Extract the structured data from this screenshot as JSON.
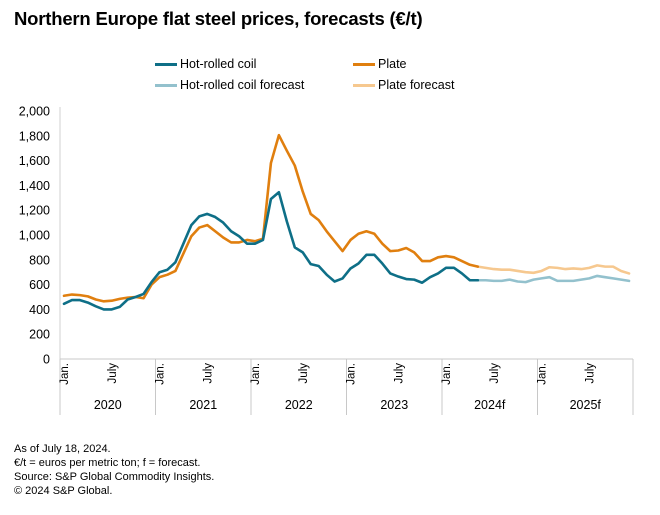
{
  "title": "Northern Europe flat steel prices, forecasts (€/t)",
  "legend": [
    {
      "label": "Hot-rolled coil",
      "color": "#0e6f87"
    },
    {
      "label": "Plate",
      "color": "#e07f0f"
    },
    {
      "label": "Hot-rolled coil forecast",
      "color": "#93c1cd"
    },
    {
      "label": "Plate forecast",
      "color": "#f6c88f"
    }
  ],
  "footnotes": [
    "As of July 18, 2024.",
    "€/t = euros per metric ton; f = forecast.",
    "Source: S&P Global Commodity Insights.",
    "© 2024 S&P Global."
  ],
  "chart_data": {
    "type": "line",
    "title": "Northern Europe flat steel prices, forecasts (€/t)",
    "xlabel": "",
    "ylabel": "",
    "ylim": [
      0,
      2000
    ],
    "yticks": [
      0,
      200,
      400,
      600,
      800,
      1000,
      1200,
      1400,
      1600,
      1800,
      2000
    ],
    "ytick_labels": [
      "0",
      "200",
      "400",
      "600",
      "800",
      "1,000",
      "1,200",
      "1,400",
      "1,600",
      "1,800",
      "2,000"
    ],
    "grid": false,
    "legend_position": "top",
    "x_start": "Jan 2020",
    "x_months": 72,
    "month_tick_labels": [
      "Jan.",
      "July"
    ],
    "year_labels": [
      "2020",
      "2021",
      "2022",
      "2023",
      "2024f",
      "2025f"
    ],
    "series": [
      {
        "name": "Hot-rolled coil",
        "color": "#0e6f87",
        "start_index": 0,
        "values": [
          445,
          475,
          475,
          455,
          425,
          400,
          400,
          420,
          480,
          500,
          525,
          620,
          700,
          720,
          780,
          930,
          1080,
          1150,
          1170,
          1145,
          1100,
          1030,
          990,
          930,
          930,
          960,
          1290,
          1345,
          1110,
          900,
          860,
          765,
          750,
          680,
          625,
          650,
          730,
          770,
          840,
          840,
          770,
          690,
          665,
          645,
          640,
          615,
          660,
          690,
          735,
          735,
          690,
          635,
          635
        ]
      },
      {
        "name": "Plate",
        "color": "#e07f0f",
        "start_index": 0,
        "values": [
          510,
          520,
          515,
          505,
          480,
          465,
          470,
          485,
          495,
          500,
          490,
          600,
          660,
          680,
          710,
          850,
          990,
          1060,
          1080,
          1030,
          980,
          940,
          940,
          960,
          950,
          970,
          1580,
          1805,
          1680,
          1560,
          1350,
          1170,
          1120,
          1030,
          950,
          870,
          960,
          1010,
          1030,
          1010,
          930,
          870,
          875,
          895,
          860,
          790,
          790,
          820,
          830,
          820,
          790,
          760,
          745
        ]
      },
      {
        "name": "Hot-rolled coil forecast",
        "color": "#93c1cd",
        "start_index": 52,
        "values": [
          635,
          635,
          630,
          630,
          640,
          625,
          620,
          640,
          650,
          660,
          630,
          630,
          630,
          640,
          650,
          670,
          660,
          650,
          640,
          630
        ]
      },
      {
        "name": "Plate forecast",
        "color": "#f6c88f",
        "start_index": 52,
        "values": [
          745,
          735,
          725,
          720,
          720,
          710,
          700,
          695,
          710,
          740,
          735,
          725,
          730,
          725,
          735,
          755,
          745,
          745,
          710,
          690
        ]
      }
    ]
  }
}
